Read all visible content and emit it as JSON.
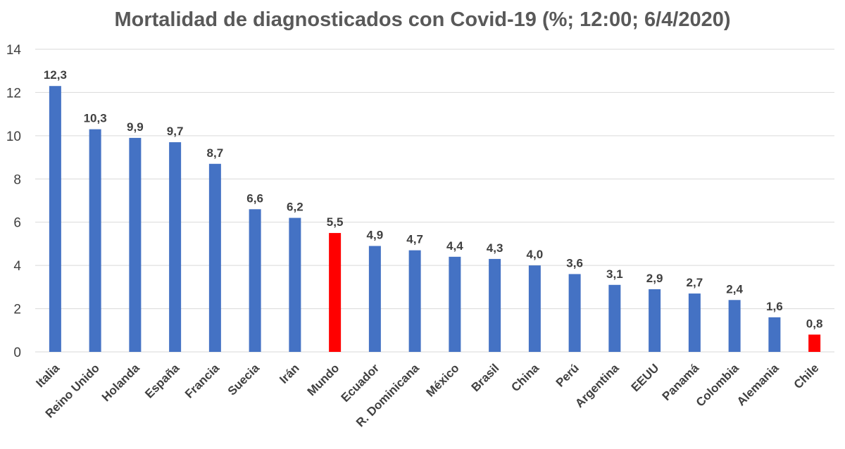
{
  "chart_data": {
    "type": "bar",
    "title": "Mortalidad de diagnosticados con Covid-19 (%; 12:00; 6/4/2020)",
    "xlabel": "",
    "ylabel": "",
    "ylim": [
      0,
      14
    ],
    "yticks": [
      0,
      2,
      4,
      6,
      8,
      10,
      12,
      14
    ],
    "grid": true,
    "legend": "none",
    "categories": [
      "Italia",
      "Reino Unido",
      "Holanda",
      "España",
      "Francia",
      "Suecia",
      "Irán",
      "Mundo",
      "Ecuador",
      "R. Dominicana",
      "México",
      "Brasil",
      "China",
      "Perú",
      "Argentina",
      "EEUU",
      "Panamá",
      "Colombia",
      "Alemania",
      "Chile"
    ],
    "values": [
      12.3,
      10.3,
      9.9,
      9.7,
      8.7,
      6.6,
      6.2,
      5.5,
      4.9,
      4.7,
      4.4,
      4.3,
      4.0,
      3.6,
      3.1,
      2.9,
      2.7,
      2.4,
      1.6,
      0.8
    ],
    "data_labels": [
      "12,3",
      "10,3",
      "9,9",
      "9,7",
      "8,7",
      "6,6",
      "6,2",
      "5,5",
      "4,9",
      "4,7",
      "4,4",
      "4,3",
      "4,0",
      "3,6",
      "3,1",
      "2,9",
      "2,7",
      "2,4",
      "1,6",
      "0,8"
    ],
    "colors": {
      "default": "#4472c4",
      "highlight": "#ff0000"
    },
    "highlighted": [
      "Mundo",
      "Chile"
    ]
  }
}
